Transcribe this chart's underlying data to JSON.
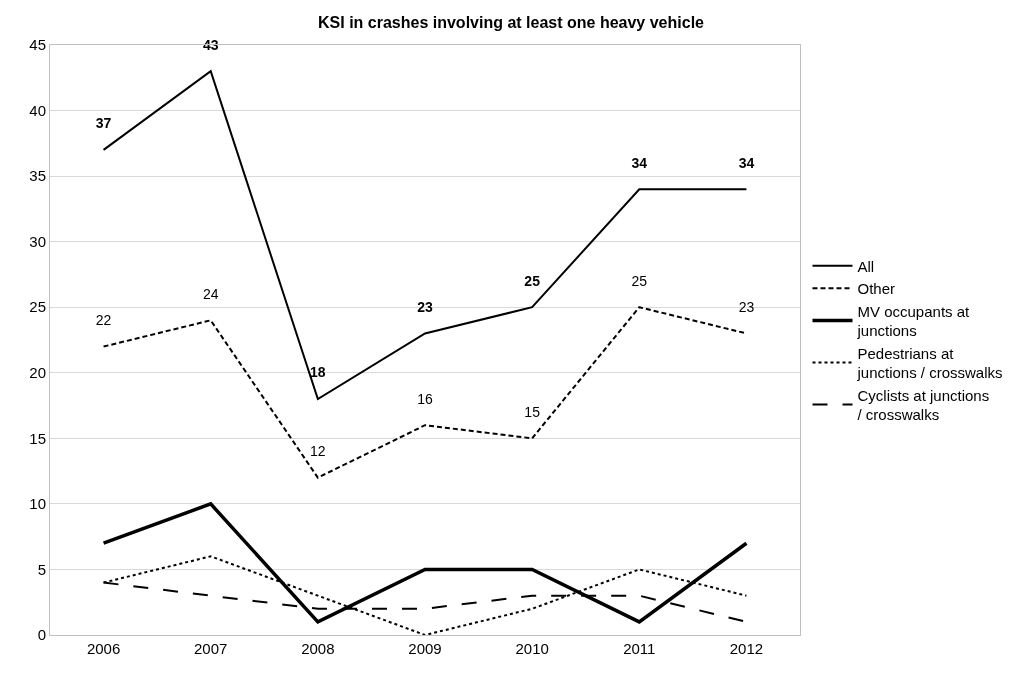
{
  "chart_data": {
    "type": "line",
    "title": "KSI in crashes involving at least one heavy vehicle",
    "categories": [
      "2006",
      "2007",
      "2008",
      "2009",
      "2010",
      "2011",
      "2012"
    ],
    "ylim": [
      0,
      45
    ],
    "yticks": [
      0,
      5,
      10,
      15,
      20,
      25,
      30,
      35,
      40,
      45
    ],
    "grid": "y",
    "legend": "right",
    "marker": "none",
    "series": [
      {
        "name": "All",
        "color": "#000000",
        "line_style": "solid",
        "values": [
          37,
          43,
          18,
          23,
          25,
          34,
          34
        ],
        "value_labels": [
          "37",
          "43",
          "18",
          "23",
          "25",
          "34",
          "34"
        ]
      },
      {
        "name": "Other",
        "color": "#000000",
        "line_style": "dashed",
        "values": [
          22,
          24,
          12,
          16,
          15,
          25,
          23
        ],
        "value_labels": [
          "22",
          "24",
          "12",
          "16",
          "15",
          "25",
          "23"
        ]
      },
      {
        "name": "MV occupants at junctions",
        "color": "#000000",
        "line_style": "solid",
        "values": [
          7,
          10,
          1,
          5,
          5,
          1,
          7
        ]
      },
      {
        "name": "Pedestrians at junctions / crosswalks",
        "color": "#000000",
        "line_style": "dotted",
        "values": [
          4,
          6,
          3,
          0,
          2,
          5,
          3
        ]
      },
      {
        "name": "Cyclists at junctions / crosswalks",
        "color": "#000000",
        "line_style": "longdash",
        "values": [
          4,
          3,
          2,
          2,
          3,
          3,
          1
        ]
      }
    ]
  }
}
